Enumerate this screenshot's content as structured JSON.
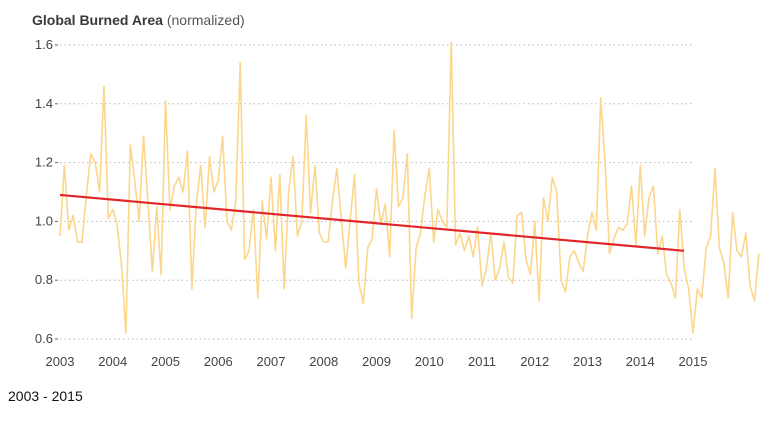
{
  "title": {
    "main": "Global Burned Area",
    "qualifier": "(normalized)"
  },
  "caption": "2003 - 2015",
  "colors": {
    "series": "#fcd68a",
    "trend": "#e0262a",
    "grid": "#b9b9b9",
    "text": "#444444"
  },
  "chart_data": {
    "type": "line",
    "title": "Global Burned Area (normalized)",
    "xlabel": "",
    "ylabel": "",
    "x_range": [
      2003,
      2015
    ],
    "ylim": [
      0.6,
      1.65
    ],
    "y_ticks": [
      "0.6",
      "0.8",
      "1.0",
      "1.2",
      "1.4",
      "1.6"
    ],
    "x_ticks": [
      "2003",
      "2004",
      "2005",
      "2006",
      "2007",
      "2008",
      "2009",
      "2010",
      "2011",
      "2012",
      "2013",
      "2014",
      "2015"
    ],
    "grid": "horizontal dotted",
    "series": [
      {
        "start": 2003.0,
        "step_months": 1,
        "values": [
          0.95,
          1.19,
          0.97,
          1.02,
          0.93,
          0.93,
          1.09,
          1.23,
          1.2,
          1.1,
          1.46,
          1.01,
          1.04,
          0.99,
          0.85,
          0.62,
          1.26,
          1.14,
          1.0,
          1.29,
          1.07,
          0.83,
          1.05,
          0.82,
          1.41,
          1.04,
          1.12,
          1.15,
          1.1,
          1.24,
          0.77,
          1.06,
          1.19,
          0.98,
          1.22,
          1.1,
          1.14,
          1.29,
          1.0,
          0.97,
          1.07,
          1.54,
          0.87,
          0.9,
          1.04,
          0.74,
          1.07,
          0.94,
          1.15,
          0.9,
          1.16,
          0.77,
          1.1,
          1.22,
          0.95,
          1.0,
          1.36,
          1.03,
          1.19,
          0.96,
          0.93,
          0.93,
          1.07,
          1.18,
          1.01,
          0.84,
          1.0,
          1.16,
          0.79,
          0.72,
          0.91,
          0.94,
          1.11,
          0.99,
          1.06,
          0.88,
          1.31,
          1.05,
          1.08,
          1.23,
          0.67,
          0.91,
          0.96,
          1.09,
          1.18,
          0.93,
          1.04,
          1.0,
          0.98,
          1.61,
          0.92,
          0.96,
          0.9,
          0.95,
          0.88,
          0.98,
          0.78,
          0.84,
          0.96,
          0.8,
          0.84,
          0.93,
          0.81,
          0.79,
          1.02,
          1.03,
          0.87,
          0.82,
          1.0,
          0.73,
          1.08,
          1.0,
          1.15,
          1.1,
          0.8,
          0.76,
          0.88,
          0.9,
          0.86,
          0.83,
          0.95,
          1.03,
          0.97,
          1.42,
          1.2,
          0.89,
          0.94,
          0.98,
          0.97,
          0.99,
          1.12,
          0.92,
          1.19,
          0.95,
          1.08,
          1.12,
          0.89,
          0.95,
          0.82,
          0.79,
          0.74,
          1.04,
          0.84,
          0.77,
          0.62,
          0.77,
          0.74,
          0.91,
          0.95,
          1.18,
          0.91,
          0.86,
          0.74,
          1.03,
          0.9,
          0.88,
          0.96,
          0.78,
          0.73,
          0.89
        ]
      },
      {
        "kind": "trend",
        "x": [
          2003.0,
          2014.83
        ],
        "values": [
          1.09,
          0.9
        ]
      }
    ]
  }
}
